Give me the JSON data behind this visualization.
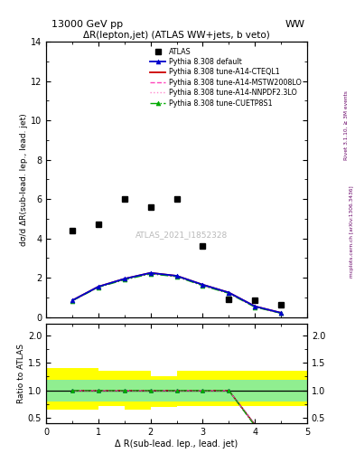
{
  "title_left": "13000 GeV pp",
  "title_right": "WW",
  "plot_title": "ΔR(lepton,jet) (ATLAS WW+jets, b veto)",
  "ylabel_main": "dσ/d ΔR(sub-lead. lep., lead. jet)",
  "ylabel_ratio": "Ratio to ATLAS",
  "xlabel": "Δ R(sub-lead. lep., lead. jet)",
  "watermark": "ATLAS_2021_I1852328",
  "right_label1": "Rivet 3.1.10, ≥ 3M events",
  "right_label2": "mcplots.cern.ch [arXiv:1306.3436]",
  "atlas_x": [
    0.5,
    1.0,
    1.5,
    2.0,
    2.5,
    3.0,
    3.5,
    4.0,
    4.5
  ],
  "atlas_y": [
    4.4,
    4.7,
    6.0,
    5.6,
    6.0,
    3.6,
    0.9,
    0.85,
    0.65
  ],
  "mc_x": [
    0.5,
    1.0,
    1.5,
    2.0,
    2.5,
    3.0,
    3.5,
    4.0,
    4.5
  ],
  "default_y": [
    0.85,
    1.55,
    1.95,
    2.25,
    2.1,
    1.65,
    1.25,
    0.55,
    0.22
  ],
  "cteql1_y": [
    0.85,
    1.55,
    1.95,
    2.25,
    2.1,
    1.65,
    1.25,
    0.55,
    0.22
  ],
  "mstw_y": [
    0.85,
    1.55,
    1.93,
    2.22,
    2.08,
    1.63,
    1.23,
    0.53,
    0.21
  ],
  "nnpdf_y": [
    0.85,
    1.55,
    1.93,
    2.22,
    2.08,
    1.63,
    1.23,
    0.53,
    0.21
  ],
  "cuetp_y": [
    0.83,
    1.52,
    1.9,
    2.2,
    2.06,
    1.6,
    1.21,
    0.51,
    0.2
  ],
  "ratio_x": [
    0.5,
    1.0,
    1.5,
    2.0,
    2.5,
    3.0,
    3.5,
    4.0,
    4.5
  ],
  "ratio_default": [
    1.0,
    1.0,
    1.0,
    1.0,
    1.0,
    1.0,
    1.0,
    0.38,
    0.34
  ],
  "ratio_cteql1": [
    1.0,
    1.0,
    1.0,
    1.0,
    1.0,
    1.0,
    1.0,
    0.38,
    0.34
  ],
  "ratio_mstw": [
    1.0,
    1.0,
    1.0,
    1.0,
    1.0,
    1.0,
    1.0,
    0.37,
    0.33
  ],
  "ratio_nnpdf": [
    1.0,
    1.0,
    1.0,
    1.0,
    1.0,
    1.0,
    1.0,
    0.37,
    0.33
  ],
  "ratio_cuetp": [
    1.0,
    1.0,
    1.0,
    1.0,
    1.0,
    1.0,
    1.0,
    0.36,
    0.31
  ],
  "band_edges": [
    0.5,
    1.0,
    1.5,
    2.0,
    2.5,
    3.0,
    3.5,
    4.0,
    4.5
  ],
  "yellow_up": [
    1.4,
    1.4,
    1.35,
    1.35,
    1.25,
    1.35,
    1.35,
    1.35,
    1.35
  ],
  "yellow_lo": [
    0.65,
    0.65,
    0.72,
    0.65,
    0.7,
    0.72,
    0.72,
    0.72,
    0.72
  ],
  "green_up": [
    1.2,
    1.2,
    1.2,
    1.2,
    1.2,
    1.2,
    1.2,
    1.2,
    1.2
  ],
  "green_lo": [
    0.8,
    0.8,
    0.8,
    0.8,
    0.8,
    0.8,
    0.8,
    0.8,
    0.8
  ],
  "ylim_main": [
    0,
    14
  ],
  "ylim_ratio": [
    0.4,
    2.2
  ],
  "xlim": [
    0,
    5.0
  ],
  "color_default": "#0000cc",
  "color_cteql1": "#cc0000",
  "color_mstw": "#ff44bb",
  "color_nnpdf": "#ff88cc",
  "color_cuetp": "#00aa00"
}
